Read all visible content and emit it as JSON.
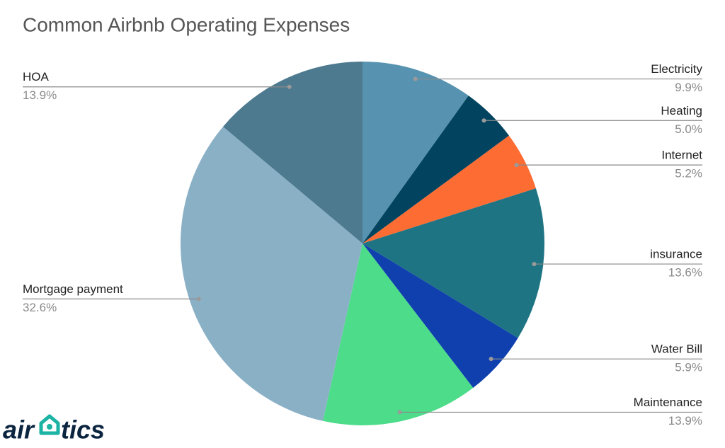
{
  "chart_data": {
    "type": "pie",
    "title": "Common Airbnb Operating Expenses",
    "categories": [
      "Electricity",
      "Heating",
      "Internet",
      "insurance",
      "Water Bill",
      "Maintenance",
      "Mortgage payment",
      "HOA"
    ],
    "values": [
      9.9,
      5.0,
      5.2,
      13.6,
      5.9,
      13.9,
      32.6,
      13.9
    ],
    "value_labels": [
      "9.9%",
      "5.0%",
      "5.2%",
      "13.6%",
      "5.9%",
      "13.9%",
      "32.6%",
      "13.9%"
    ],
    "colors": [
      "#5793b0",
      "#02445f",
      "#fd6c33",
      "#1f7483",
      "#1040ae",
      "#4ddc89",
      "#8ab0c6",
      "#4d7a8f"
    ]
  },
  "logo": {
    "left": "air",
    "right": "tics"
  }
}
